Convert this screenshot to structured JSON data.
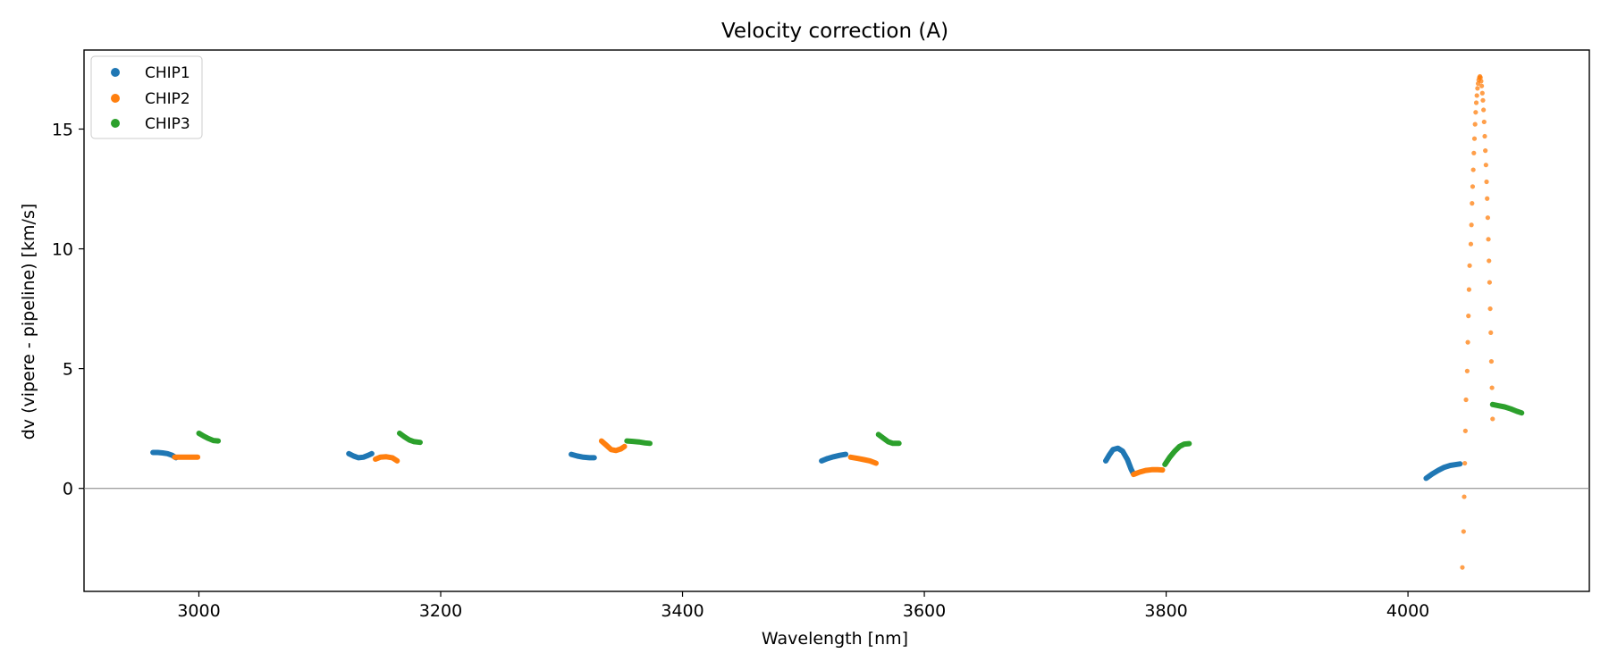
{
  "chart_data": {
    "type": "scatter",
    "title": "Velocity correction (A)",
    "xlabel": "Wavelength [nm]",
    "ylabel": "dv (vipere - pipeline) [km/s]",
    "xlim": [
      2905,
      4150
    ],
    "ylim": [
      -4.3,
      18.3
    ],
    "xticks": [
      3000,
      3200,
      3400,
      3600,
      3800,
      4000
    ],
    "yticks": [
      0,
      5,
      10,
      15
    ],
    "reference_line_y": 0,
    "legend_location": "top-left",
    "series": [
      {
        "name": "CHIP1",
        "color": "#1f77b4",
        "segments": [
          [
            [
              2962,
              1.5
            ],
            [
              2966,
              1.5
            ],
            [
              2970,
              1.48
            ],
            [
              2974,
              1.45
            ],
            [
              2978,
              1.38
            ],
            [
              2981,
              1.28
            ]
          ],
          [
            [
              3124,
              1.45
            ],
            [
              3128,
              1.35
            ],
            [
              3132,
              1.28
            ],
            [
              3136,
              1.3
            ],
            [
              3140,
              1.38
            ],
            [
              3143,
              1.45
            ]
          ],
          [
            [
              3308,
              1.42
            ],
            [
              3313,
              1.35
            ],
            [
              3318,
              1.3
            ],
            [
              3323,
              1.28
            ],
            [
              3327,
              1.28
            ]
          ],
          [
            [
              3515,
              1.15
            ],
            [
              3520,
              1.25
            ],
            [
              3525,
              1.32
            ],
            [
              3530,
              1.38
            ],
            [
              3535,
              1.42
            ]
          ],
          [
            [
              3750,
              1.15
            ],
            [
              3753,
              1.4
            ],
            [
              3756,
              1.62
            ],
            [
              3760,
              1.68
            ],
            [
              3764,
              1.55
            ],
            [
              3768,
              1.2
            ],
            [
              3771,
              0.8
            ],
            [
              3773,
              0.6
            ]
          ],
          [
            [
              4015,
              0.42
            ],
            [
              4020,
              0.6
            ],
            [
              4025,
              0.75
            ],
            [
              4030,
              0.88
            ],
            [
              4035,
              0.96
            ],
            [
              4040,
              1.0
            ],
            [
              4043,
              1.02
            ]
          ]
        ]
      },
      {
        "name": "CHIP2",
        "color": "#ff7f0e",
        "segments": [
          [
            [
              2980,
              1.3
            ],
            [
              2985,
              1.3
            ],
            [
              2990,
              1.3
            ],
            [
              2995,
              1.3
            ],
            [
              2999,
              1.3
            ]
          ],
          [
            [
              3146,
              1.22
            ],
            [
              3150,
              1.3
            ],
            [
              3155,
              1.32
            ],
            [
              3160,
              1.28
            ],
            [
              3164,
              1.15
            ]
          ],
          [
            [
              3333,
              1.98
            ],
            [
              3337,
              1.8
            ],
            [
              3341,
              1.62
            ],
            [
              3345,
              1.58
            ],
            [
              3349,
              1.65
            ],
            [
              3352,
              1.75
            ]
          ],
          [
            [
              3539,
              1.3
            ],
            [
              3545,
              1.25
            ],
            [
              3550,
              1.2
            ],
            [
              3555,
              1.15
            ],
            [
              3560,
              1.05
            ]
          ],
          [
            [
              3773,
              0.58
            ],
            [
              3778,
              0.68
            ],
            [
              3783,
              0.75
            ],
            [
              3788,
              0.78
            ],
            [
              3793,
              0.78
            ],
            [
              3797,
              0.77
            ]
          ],
          [
            [
              4045,
              -3.3
            ],
            [
              4046,
              -1.8
            ],
            [
              4046.5,
              -0.35
            ],
            [
              4047,
              1.05
            ],
            [
              4047.5,
              2.4
            ],
            [
              4048,
              3.7
            ],
            [
              4049,
              4.9
            ],
            [
              4049.5,
              6.1
            ],
            [
              4050,
              7.2
            ],
            [
              4050.5,
              8.3
            ],
            [
              4051,
              9.3
            ],
            [
              4052,
              10.2
            ],
            [
              4052.5,
              11.0
            ],
            [
              4053,
              11.9
            ],
            [
              4053.5,
              12.6
            ],
            [
              4054,
              13.3
            ],
            [
              4054.5,
              14.0
            ],
            [
              4055,
              14.6
            ],
            [
              4055.5,
              15.2
            ],
            [
              4056,
              15.7
            ],
            [
              4056.5,
              16.1
            ],
            [
              4057,
              16.4
            ],
            [
              4057.5,
              16.7
            ],
            [
              4058,
              16.9
            ],
            [
              4058.5,
              17.05
            ],
            [
              4059,
              17.15
            ],
            [
              4059.5,
              17.2
            ],
            [
              4060,
              17.15
            ],
            [
              4060.5,
              17.0
            ],
            [
              4061,
              16.8
            ],
            [
              4061.5,
              16.5
            ],
            [
              4062,
              16.2
            ],
            [
              4062.5,
              15.8
            ],
            [
              4063,
              15.3
            ],
            [
              4063.5,
              14.7
            ],
            [
              4064,
              14.1
            ],
            [
              4064.5,
              13.5
            ],
            [
              4065,
              12.8
            ],
            [
              4065.5,
              12.1
            ],
            [
              4066,
              11.3
            ],
            [
              4066.5,
              10.4
            ],
            [
              4067,
              9.5
            ],
            [
              4067.5,
              8.6
            ],
            [
              4068,
              7.5
            ],
            [
              4068.5,
              6.5
            ],
            [
              4069,
              5.3
            ],
            [
              4069.5,
              4.2
            ],
            [
              4070,
              2.9
            ]
          ]
        ]
      },
      {
        "name": "CHIP3",
        "color": "#2ca02c",
        "segments": [
          [
            [
              3000,
              2.3
            ],
            [
              3004,
              2.18
            ],
            [
              3008,
              2.08
            ],
            [
              3012,
              2.0
            ],
            [
              3016,
              1.98
            ]
          ],
          [
            [
              3166,
              2.3
            ],
            [
              3170,
              2.15
            ],
            [
              3174,
              2.02
            ],
            [
              3178,
              1.95
            ],
            [
              3183,
              1.92
            ]
          ],
          [
            [
              3354,
              1.98
            ],
            [
              3359,
              1.96
            ],
            [
              3364,
              1.94
            ],
            [
              3369,
              1.9
            ],
            [
              3373,
              1.88
            ]
          ],
          [
            [
              3562,
              2.25
            ],
            [
              3566,
              2.1
            ],
            [
              3570,
              1.95
            ],
            [
              3574,
              1.88
            ],
            [
              3579,
              1.88
            ]
          ],
          [
            [
              3799,
              1.0
            ],
            [
              3803,
              1.3
            ],
            [
              3807,
              1.55
            ],
            [
              3811,
              1.75
            ],
            [
              3815,
              1.85
            ],
            [
              3819,
              1.87
            ]
          ],
          [
            [
              4070,
              3.5
            ],
            [
              4075,
              3.45
            ],
            [
              4080,
              3.4
            ],
            [
              4085,
              3.32
            ],
            [
              4090,
              3.22
            ],
            [
              4094,
              3.15
            ]
          ]
        ]
      }
    ]
  }
}
